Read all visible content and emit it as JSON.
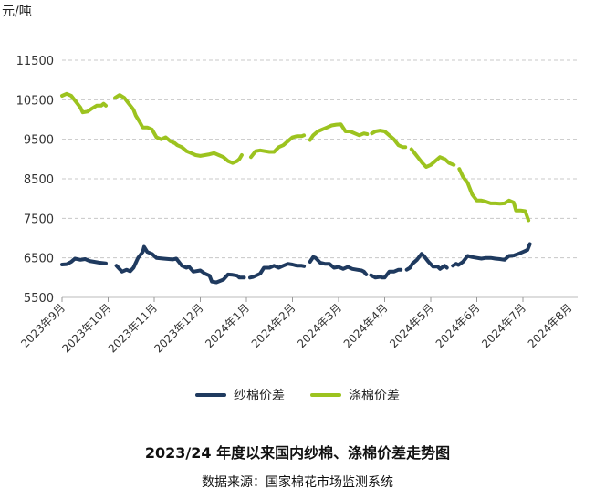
{
  "chart_data": {
    "type": "line",
    "title": "2023/24 年度以来国内纱棉、涤棉价差走势图",
    "source": "数据来源：国家棉花市场监测系统",
    "ylabel": "元/吨",
    "ylim": [
      5500,
      11500
    ],
    "yticks": [
      5500,
      6500,
      7500,
      8500,
      9500,
      10500,
      11500
    ],
    "grid": true,
    "legend_position": "bottom",
    "months": [
      "2023年9月",
      "2023年10月",
      "2023年11月",
      "2023年12月",
      "2024年1月",
      "2024年2月",
      "2024年3月",
      "2024年4月",
      "2024年5月",
      "2024年6月",
      "2024年7月",
      "2024年8月"
    ],
    "series": [
      {
        "name": "纱棉价差",
        "color": "#1f3a5f",
        "points": [
          [
            0.0,
            6330
          ],
          [
            0.1,
            6340
          ],
          [
            0.2,
            6400
          ],
          [
            0.28,
            6480
          ],
          [
            0.4,
            6450
          ],
          [
            0.5,
            6470
          ],
          [
            0.6,
            6420
          ],
          [
            0.8,
            6380
          ],
          [
            0.95,
            6360
          ],
          null,
          [
            1.18,
            6300
          ],
          [
            1.3,
            6150
          ],
          [
            1.4,
            6200
          ],
          [
            1.48,
            6160
          ],
          [
            1.55,
            6250
          ],
          [
            1.65,
            6500
          ],
          [
            1.75,
            6650
          ],
          [
            1.78,
            6780
          ],
          [
            1.85,
            6650
          ],
          [
            1.95,
            6600
          ],
          [
            2.05,
            6500
          ],
          [
            2.2,
            6480
          ],
          [
            2.4,
            6460
          ],
          [
            2.48,
            6480
          ],
          [
            2.6,
            6300
          ],
          [
            2.7,
            6250
          ],
          [
            2.75,
            6280
          ],
          [
            2.85,
            6150
          ],
          [
            3.0,
            6180
          ],
          [
            3.1,
            6100
          ],
          [
            3.2,
            6050
          ],
          [
            3.25,
            5900
          ],
          [
            3.35,
            5880
          ],
          [
            3.5,
            5950
          ],
          [
            3.6,
            6080
          ],
          [
            3.7,
            6070
          ],
          [
            3.8,
            6050
          ],
          [
            3.85,
            6000
          ],
          [
            3.95,
            6000
          ],
          null,
          [
            4.08,
            6000
          ],
          [
            4.15,
            6020
          ],
          [
            4.3,
            6100
          ],
          [
            4.38,
            6250
          ],
          [
            4.5,
            6250
          ],
          [
            4.6,
            6300
          ],
          [
            4.7,
            6250
          ],
          [
            4.8,
            6300
          ],
          [
            4.9,
            6350
          ],
          [
            5.0,
            6330
          ],
          [
            5.1,
            6300
          ],
          [
            5.2,
            6300
          ],
          [
            5.25,
            6290
          ],
          null,
          [
            5.38,
            6400
          ],
          [
            5.45,
            6520
          ],
          [
            5.5,
            6500
          ],
          [
            5.6,
            6380
          ],
          [
            5.7,
            6350
          ],
          [
            5.8,
            6350
          ],
          [
            5.9,
            6250
          ],
          [
            6.0,
            6270
          ],
          [
            6.1,
            6220
          ],
          [
            6.2,
            6270
          ],
          [
            6.3,
            6220
          ],
          [
            6.4,
            6200
          ],
          [
            6.5,
            6180
          ],
          [
            6.55,
            6150
          ],
          [
            6.6,
            6080
          ],
          null,
          [
            6.7,
            6060
          ],
          [
            6.8,
            6000
          ],
          [
            6.9,
            6020
          ],
          [
            6.95,
            6000
          ],
          [
            7.0,
            6000
          ],
          [
            7.1,
            6150
          ],
          [
            7.2,
            6150
          ],
          [
            7.3,
            6200
          ],
          [
            7.35,
            6200
          ],
          null,
          [
            7.48,
            6200
          ],
          [
            7.55,
            6250
          ],
          [
            7.6,
            6350
          ],
          [
            7.7,
            6450
          ],
          [
            7.8,
            6600
          ],
          [
            7.85,
            6550
          ],
          [
            7.95,
            6400
          ],
          [
            8.05,
            6280
          ],
          [
            8.15,
            6280
          ],
          [
            8.2,
            6220
          ],
          [
            8.3,
            6300
          ],
          [
            8.35,
            6250
          ],
          null,
          [
            8.48,
            6300
          ],
          [
            8.55,
            6350
          ],
          [
            8.6,
            6320
          ],
          [
            8.7,
            6400
          ],
          [
            8.8,
            6550
          ],
          [
            8.9,
            6520
          ],
          [
            9.0,
            6500
          ],
          [
            9.1,
            6480
          ],
          [
            9.2,
            6500
          ],
          [
            9.3,
            6500
          ],
          [
            9.4,
            6480
          ],
          [
            9.5,
            6470
          ],
          [
            9.6,
            6450
          ],
          [
            9.7,
            6550
          ],
          [
            9.8,
            6560
          ],
          [
            9.9,
            6600
          ],
          [
            10.0,
            6650
          ],
          [
            10.1,
            6700
          ],
          [
            10.15,
            6850
          ]
        ]
      },
      {
        "name": "涤棉价差",
        "color": "#9cc31f",
        "points": [
          [
            0.0,
            10600
          ],
          [
            0.1,
            10650
          ],
          [
            0.2,
            10600
          ],
          [
            0.3,
            10450
          ],
          [
            0.4,
            10300
          ],
          [
            0.45,
            10180
          ],
          [
            0.55,
            10200
          ],
          [
            0.65,
            10280
          ],
          [
            0.75,
            10350
          ],
          [
            0.85,
            10350
          ],
          [
            0.9,
            10400
          ],
          [
            0.95,
            10350
          ],
          null,
          [
            1.15,
            10550
          ],
          [
            1.25,
            10620
          ],
          [
            1.35,
            10550
          ],
          [
            1.45,
            10400
          ],
          [
            1.55,
            10250
          ],
          [
            1.6,
            10100
          ],
          [
            1.68,
            9950
          ],
          [
            1.75,
            9800
          ],
          [
            1.85,
            9800
          ],
          [
            1.95,
            9750
          ],
          [
            2.05,
            9550
          ],
          [
            2.15,
            9500
          ],
          [
            2.25,
            9550
          ],
          [
            2.35,
            9450
          ],
          [
            2.45,
            9400
          ],
          [
            2.5,
            9350
          ],
          [
            2.6,
            9300
          ],
          [
            2.7,
            9200
          ],
          [
            2.8,
            9150
          ],
          [
            2.9,
            9100
          ],
          [
            3.0,
            9080
          ],
          [
            3.1,
            9100
          ],
          [
            3.2,
            9120
          ],
          [
            3.3,
            9150
          ],
          [
            3.4,
            9100
          ],
          [
            3.5,
            9050
          ],
          [
            3.6,
            8950
          ],
          [
            3.7,
            8900
          ],
          [
            3.8,
            8950
          ],
          [
            3.85,
            9000
          ],
          [
            3.9,
            9100
          ],
          null,
          [
            4.1,
            9050
          ],
          [
            4.2,
            9200
          ],
          [
            4.3,
            9220
          ],
          [
            4.4,
            9200
          ],
          [
            4.5,
            9180
          ],
          [
            4.6,
            9180
          ],
          [
            4.7,
            9300
          ],
          [
            4.8,
            9350
          ],
          [
            4.9,
            9450
          ],
          [
            5.0,
            9550
          ],
          [
            5.1,
            9580
          ],
          [
            5.2,
            9580
          ],
          [
            5.25,
            9600
          ],
          null,
          [
            5.38,
            9480
          ],
          [
            5.45,
            9600
          ],
          [
            5.55,
            9700
          ],
          [
            5.65,
            9750
          ],
          [
            5.75,
            9800
          ],
          [
            5.85,
            9850
          ],
          [
            5.95,
            9870
          ],
          [
            6.05,
            9880
          ],
          [
            6.15,
            9700
          ],
          [
            6.25,
            9700
          ],
          [
            6.35,
            9650
          ],
          [
            6.45,
            9600
          ],
          [
            6.55,
            9650
          ],
          [
            6.62,
            9630
          ],
          null,
          [
            6.72,
            9650
          ],
          [
            6.8,
            9700
          ],
          [
            6.9,
            9720
          ],
          [
            7.0,
            9700
          ],
          [
            7.1,
            9600
          ],
          [
            7.2,
            9500
          ],
          [
            7.3,
            9350
          ],
          [
            7.4,
            9300
          ],
          [
            7.45,
            9300
          ],
          null,
          [
            7.58,
            9250
          ],
          [
            7.65,
            9150
          ],
          [
            7.75,
            9000
          ],
          [
            7.82,
            8900
          ],
          [
            7.9,
            8800
          ],
          [
            8.0,
            8850
          ],
          [
            8.1,
            8950
          ],
          [
            8.2,
            9050
          ],
          [
            8.3,
            9000
          ],
          [
            8.4,
            8900
          ],
          [
            8.5,
            8850
          ],
          null,
          [
            8.62,
            8750
          ],
          [
            8.7,
            8550
          ],
          [
            8.8,
            8400
          ],
          [
            8.9,
            8100
          ],
          [
            9.0,
            7950
          ],
          [
            9.1,
            7950
          ],
          [
            9.2,
            7920
          ],
          [
            9.3,
            7880
          ],
          [
            9.4,
            7880
          ],
          [
            9.5,
            7870
          ],
          [
            9.6,
            7880
          ],
          [
            9.7,
            7950
          ],
          [
            9.8,
            7900
          ],
          [
            9.85,
            7700
          ],
          [
            9.95,
            7700
          ],
          [
            10.05,
            7680
          ],
          [
            10.12,
            7450
          ]
        ]
      }
    ]
  }
}
